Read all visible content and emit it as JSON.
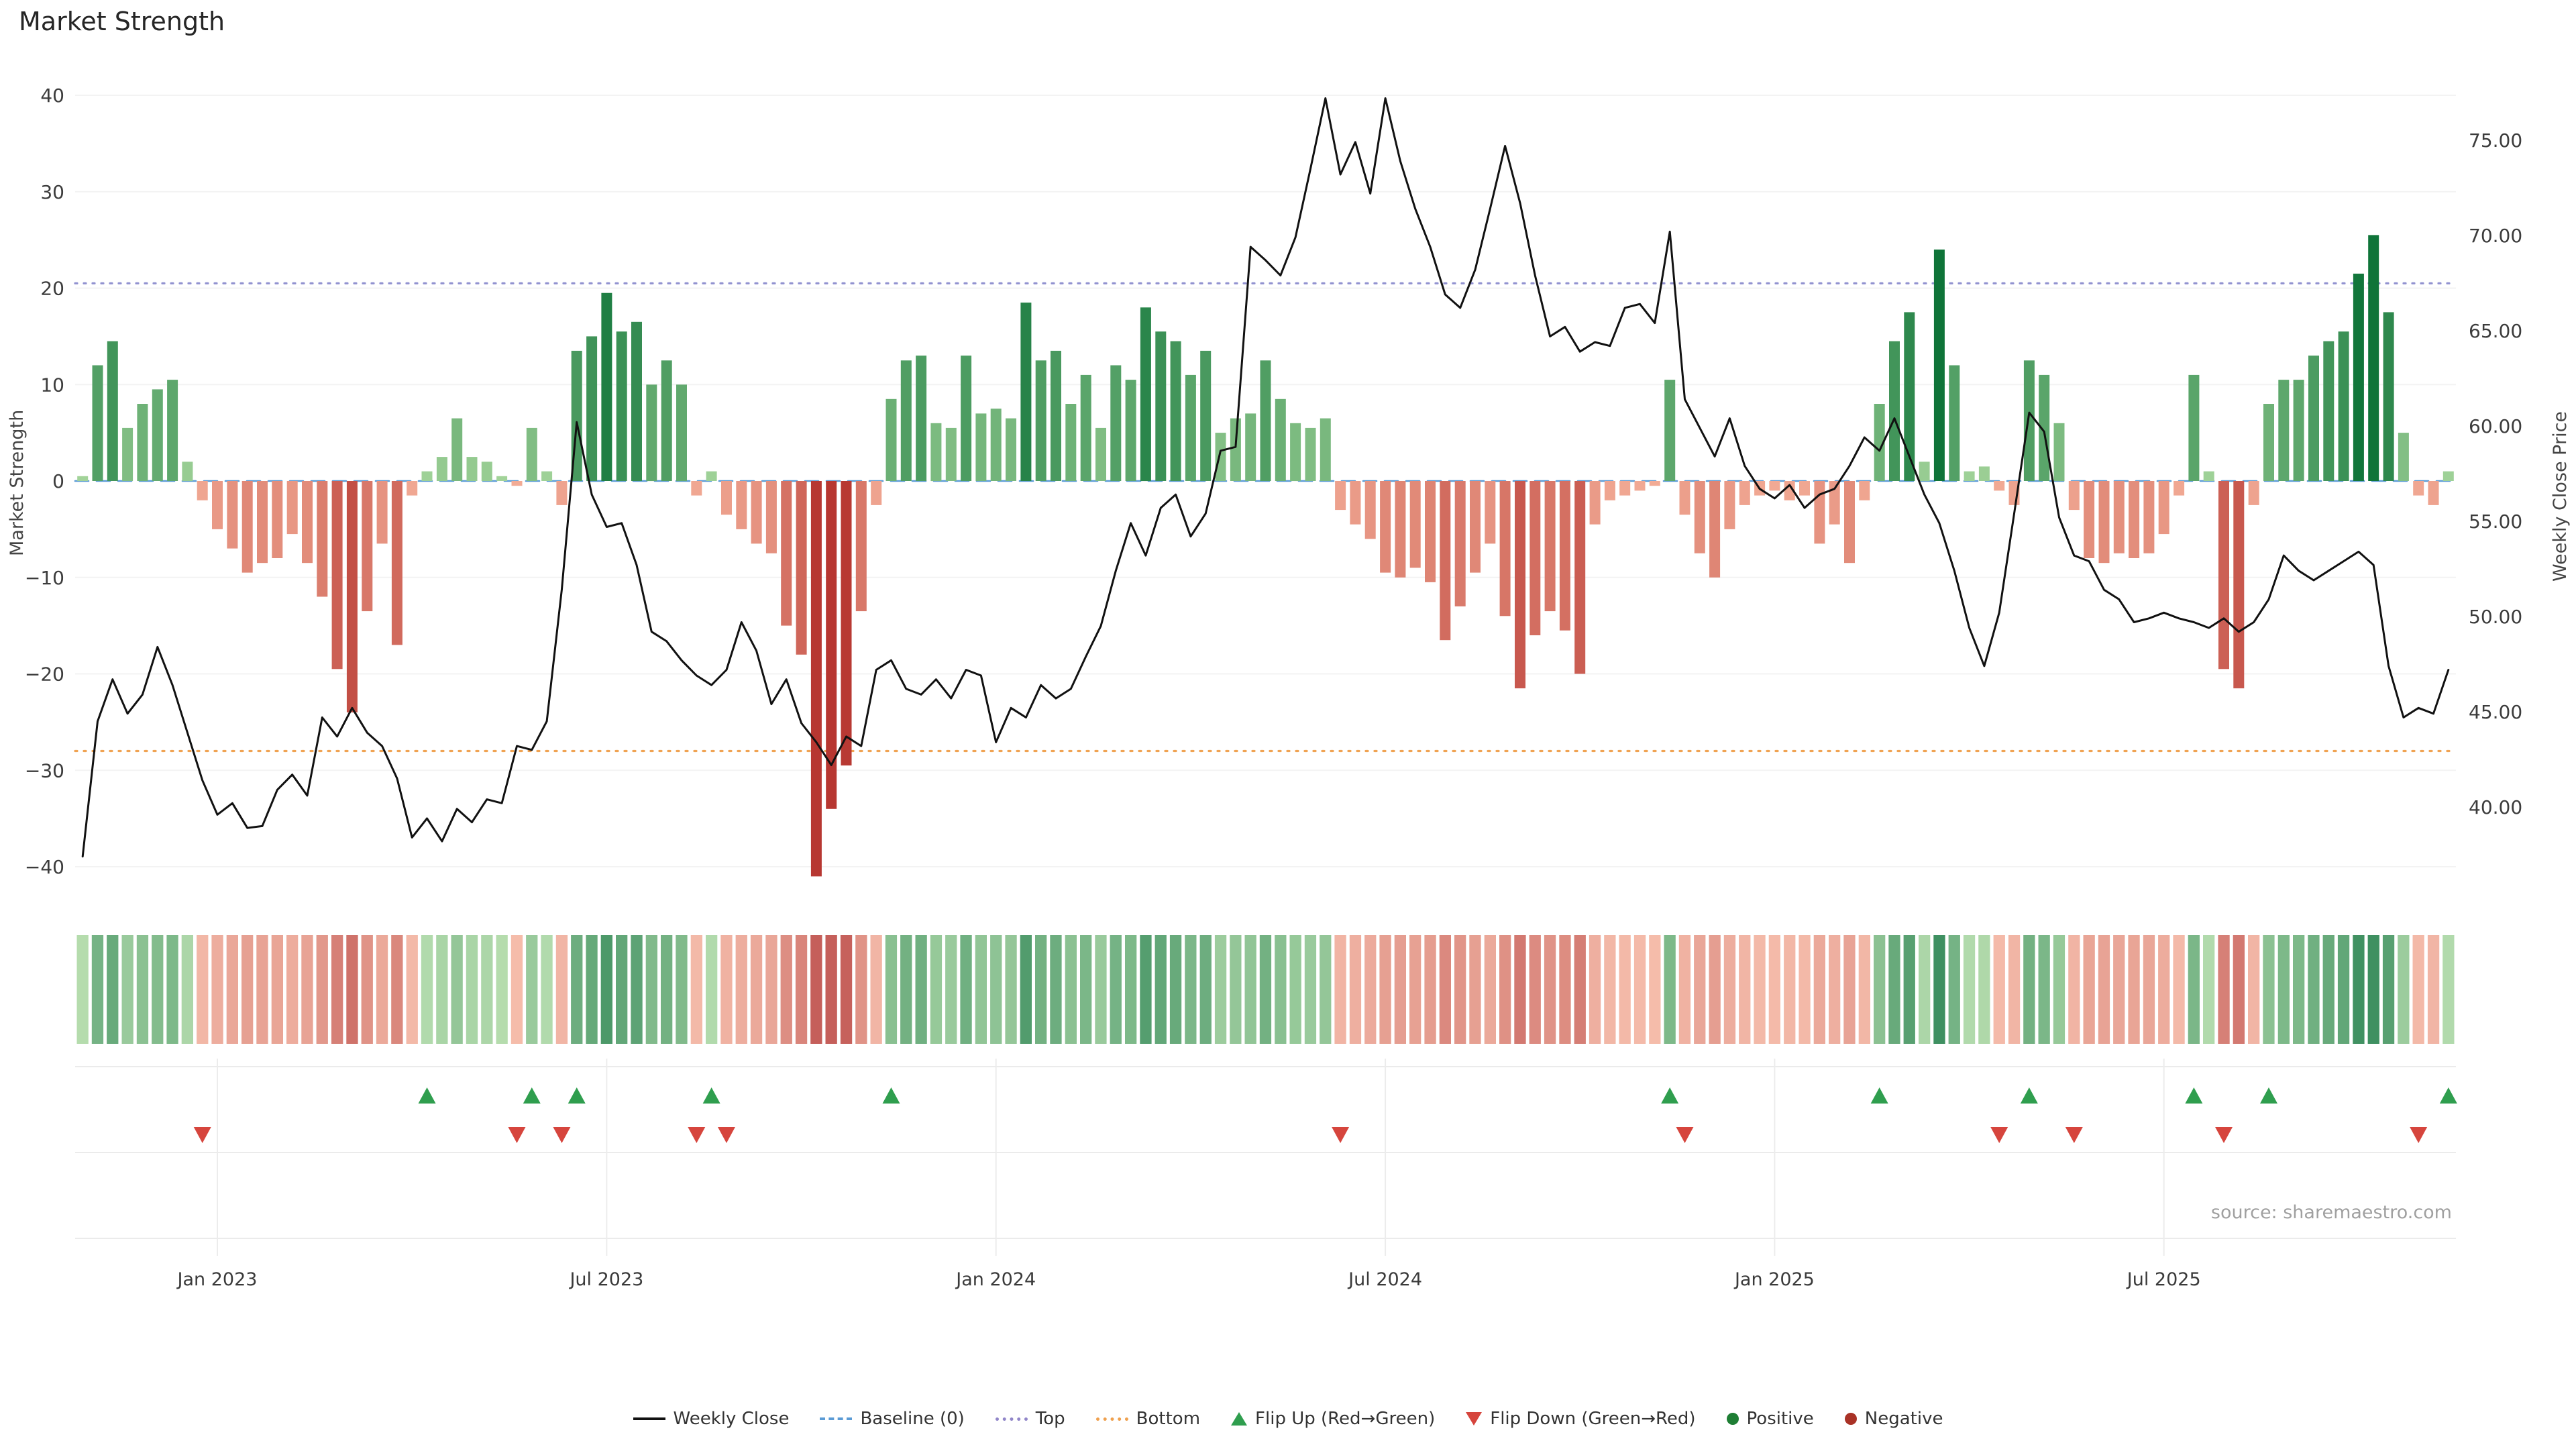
{
  "title": "Market Strength",
  "source": "source: sharemaestro.com",
  "axes": {
    "left_label": "Market Strength",
    "right_label": "Weekly Close Price"
  },
  "colors": {
    "positive_dark": "#0f7439",
    "positive_light": "#a5d59b",
    "negative_dark": "#b73731",
    "negative_light": "#f3ad97",
    "weekly_close": "#111111",
    "baseline": "#5b9bd5",
    "top_line": "#9091cf",
    "bottom_line": "#f0a353",
    "flip_up": "#2f9e4e",
    "flip_down": "#d6453d"
  },
  "legend": {
    "items": [
      {
        "key": "weekly-close",
        "label": "Weekly Close",
        "icon": "line",
        "color": "#111111"
      },
      {
        "key": "baseline",
        "label": "Baseline (0)",
        "icon": "dash",
        "color": "#5b9bd5"
      },
      {
        "key": "top",
        "label": "Top",
        "icon": "dot",
        "color": "#9186c9"
      },
      {
        "key": "bottom",
        "label": "Bottom",
        "icon": "dot",
        "color": "#efa14f"
      },
      {
        "key": "flip-up",
        "label": "Flip Up (Red→Green)",
        "icon": "tri-up",
        "color": "#2f9e4e"
      },
      {
        "key": "flip-down",
        "label": "Flip Down (Green→Red)",
        "icon": "tri-down",
        "color": "#d6453d"
      },
      {
        "key": "positive",
        "label": "Positive",
        "icon": "circle",
        "color": "#1e7e34"
      },
      {
        "key": "negative",
        "label": "Negative",
        "icon": "circle",
        "color": "#a93226"
      }
    ]
  },
  "chart_data": {
    "type": "bar",
    "description": "Weekly market strength bars (left axis) with weekly close price line (right axis), heatmap strip and flip markers",
    "left_axis": {
      "label": "Market Strength",
      "min": -40,
      "max": 40,
      "ticks": [
        -40,
        -30,
        -20,
        -10,
        0,
        10,
        20,
        30,
        40
      ]
    },
    "right_axis": {
      "label": "Weekly Close Price",
      "ticks": [
        40,
        45,
        50,
        55,
        60,
        65,
        70,
        75
      ]
    },
    "x_ticks": [
      {
        "index": 9,
        "label": "Jan 2023"
      },
      {
        "index": 35,
        "label": "Jul 2023"
      },
      {
        "index": 61,
        "label": "Jan 2024"
      },
      {
        "index": 87,
        "label": "Jul 2024"
      },
      {
        "index": 113,
        "label": "Jan 2025"
      },
      {
        "index": 139,
        "label": "Jul 2025"
      }
    ],
    "series": [
      {
        "name": "Market Strength",
        "type": "bar",
        "axis": "left",
        "values": [
          0.5,
          12,
          14.5,
          5.5,
          8,
          9.5,
          10.5,
          2,
          -2,
          -5,
          -7,
          -9.5,
          -8.5,
          -8,
          -5.5,
          -8.5,
          -12,
          -19.5,
          -24,
          -13.5,
          -6.5,
          -17,
          -1.5,
          1,
          2.5,
          6.5,
          2.5,
          2,
          0.5,
          -0.5,
          5.5,
          1,
          -2.5,
          13.5,
          15,
          19.5,
          15.5,
          16.5,
          10,
          12.5,
          10,
          -1.5,
          1,
          -3.5,
          -5,
          -6.5,
          -7.5,
          -15,
          -18,
          -41,
          -34,
          -29.5,
          -13.5,
          -2.5,
          8.5,
          12.5,
          13,
          6,
          5.5,
          13,
          7,
          7.5,
          6.5,
          18.5,
          12.5,
          13.5,
          8,
          11,
          5.5,
          12,
          10.5,
          18,
          15.5,
          14.5,
          11,
          13.5,
          5,
          6.5,
          7,
          12.5,
          8.5,
          6,
          5.5,
          6.5,
          -3,
          -4.5,
          -6,
          -9.5,
          -10,
          -9,
          -10.5,
          -16.5,
          -13,
          -9.5,
          -6.5,
          -14,
          -21.5,
          -16,
          -13.5,
          -15.5,
          -20,
          -4.5,
          -2,
          -1.5,
          -1,
          -0.5,
          10.5,
          -3.5,
          -7.5,
          -10,
          -5,
          -2.5,
          -1.5,
          -1,
          -2,
          -1.5,
          -6.5,
          -4.5,
          -8.5,
          -2,
          8,
          14.5,
          17.5,
          2,
          24,
          12,
          1,
          1.5,
          -1,
          -2.5,
          12.5,
          11,
          6,
          -3,
          -8,
          -8.5,
          -7.5,
          -8,
          -7.5,
          -5.5,
          -1.5,
          11,
          1,
          -19.5,
          -21.5,
          -2.5,
          8,
          10.5,
          10.5,
          13,
          14.5,
          15.5,
          21.5,
          25.5,
          17.5,
          5,
          -1.5,
          -2.5,
          1
        ]
      },
      {
        "name": "Weekly Close",
        "type": "line",
        "axis": "right",
        "values": [
          37.4,
          44.5,
          46.7,
          44.9,
          45.9,
          48.4,
          46.4,
          43.9,
          41.4,
          39.6,
          40.2,
          38.9,
          39.0,
          40.9,
          41.7,
          40.6,
          44.7,
          43.7,
          45.2,
          43.9,
          43.2,
          41.5,
          38.4,
          39.4,
          38.2,
          39.9,
          39.2,
          40.4,
          40.2,
          43.2,
          43.0,
          44.5,
          51.4,
          60.2,
          56.4,
          54.7,
          54.9,
          52.7,
          49.2,
          48.7,
          47.7,
          46.9,
          46.4,
          47.2,
          49.7,
          48.2,
          45.4,
          46.7,
          44.4,
          43.4,
          42.2,
          43.7,
          43.2,
          47.2,
          47.7,
          46.2,
          45.9,
          46.7,
          45.7,
          47.2,
          46.9,
          43.4,
          45.2,
          44.7,
          46.4,
          45.7,
          46.2,
          47.9,
          49.5,
          52.4,
          54.9,
          53.2,
          55.7,
          56.4,
          54.2,
          55.4,
          58.7,
          58.9,
          69.4,
          68.7,
          67.9,
          69.9,
          73.5,
          77.2,
          73.2,
          74.9,
          72.2,
          77.2,
          73.9,
          71.4,
          69.4,
          66.9,
          66.2,
          68.2,
          71.4,
          74.7,
          71.7,
          67.9,
          64.7,
          65.2,
          63.9,
          64.4,
          64.2,
          66.2,
          66.4,
          65.4,
          70.2,
          61.4,
          59.9,
          58.4,
          60.4,
          57.9,
          56.7,
          56.2,
          56.9,
          55.7,
          56.4,
          56.7,
          57.9,
          59.4,
          58.7,
          60.4,
          58.4,
          56.4,
          54.9,
          52.4,
          49.4,
          47.4,
          50.2,
          55.4,
          60.7,
          59.7,
          55.2,
          53.2,
          52.9,
          51.4,
          50.9,
          49.7,
          49.9,
          50.2,
          49.9,
          49.7,
          49.4,
          49.9,
          49.2,
          49.7,
          50.9,
          53.2,
          52.4,
          51.9,
          52.4,
          52.9,
          53.4,
          52.7,
          47.4,
          44.7,
          45.2,
          44.9,
          47.2
        ]
      }
    ],
    "reference_lines": [
      {
        "key": "baseline",
        "name": "Baseline (0)",
        "value": 0,
        "axis": "left",
        "style": "dashed",
        "color": "#5b9bd5"
      },
      {
        "key": "top",
        "name": "Top",
        "value": 20.5,
        "axis": "left",
        "style": "dotted",
        "color": "#9091cf"
      },
      {
        "key": "bottom",
        "name": "Bottom",
        "value": -28,
        "axis": "left",
        "style": "dotted",
        "color": "#f0a353"
      }
    ],
    "markers": {
      "flip_up": [
        23,
        30,
        33,
        42,
        54,
        106,
        120,
        130,
        141,
        146,
        158
      ],
      "flip_down": [
        8,
        29,
        32,
        41,
        43,
        84,
        107,
        128,
        133,
        143,
        156
      ]
    }
  }
}
